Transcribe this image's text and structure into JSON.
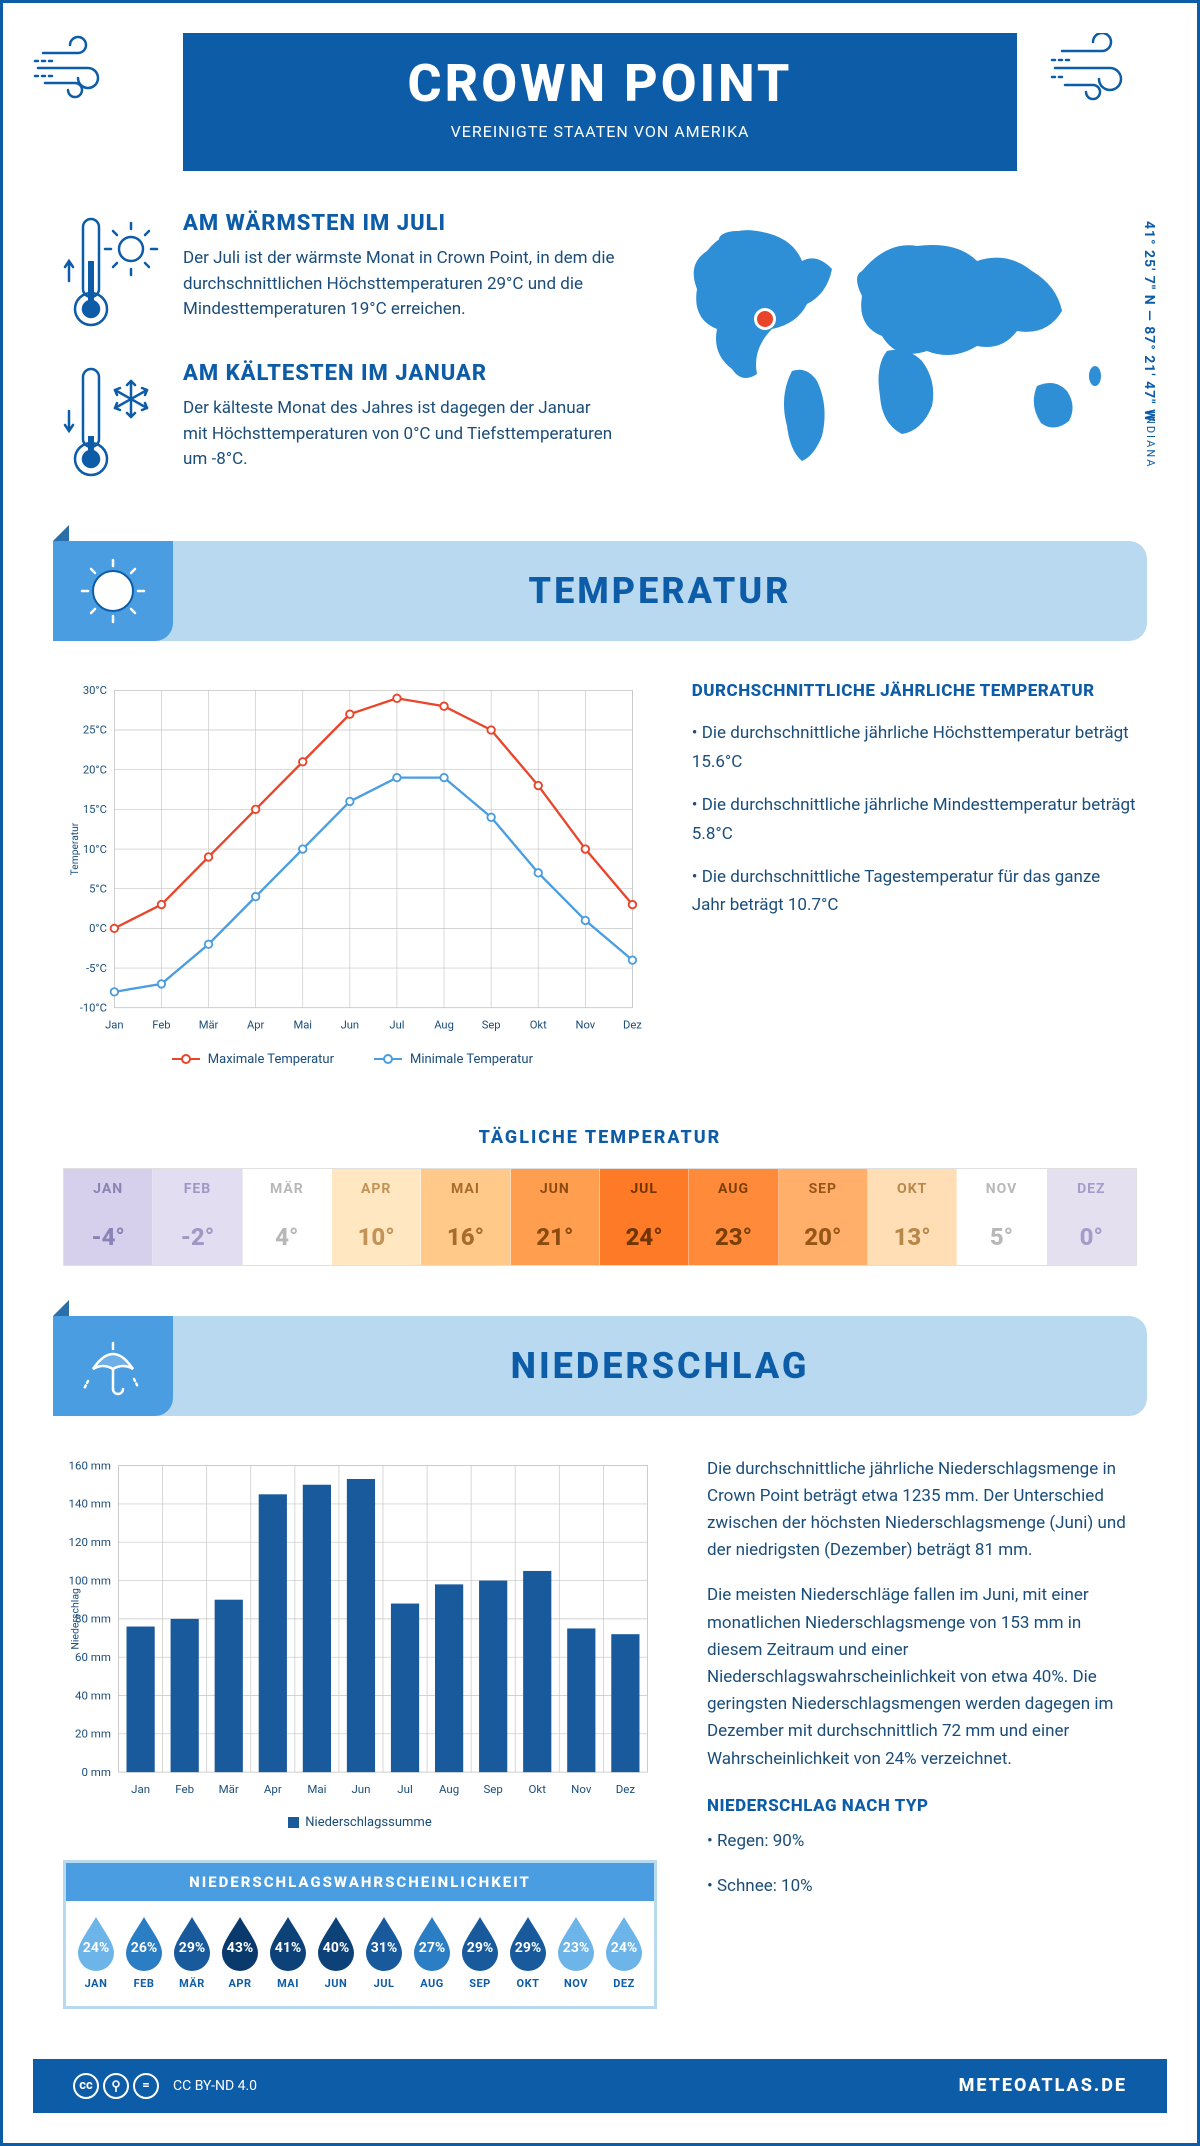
{
  "header": {
    "title": "CROWN POINT",
    "subtitle": "VEREINIGTE STAATEN VON AMERIKA"
  },
  "location": {
    "coords": "41° 25' 7\" N — 87° 21' 47\" W",
    "state": "INDIANA",
    "marker_color": "#e8452b"
  },
  "colors": {
    "primary": "#0d5ca8",
    "light_blue": "#b8d9f0",
    "mid_blue": "#4a9de0",
    "map_blue": "#2e8ed6",
    "text": "#1a4d7a",
    "orange": "#e8452b",
    "line_max": "#e8452b",
    "line_min": "#4a9de0",
    "bar_fill": "#185a9c"
  },
  "warmest": {
    "title": "AM WÄRMSTEN IM JULI",
    "text": "Der Juli ist der wärmste Monat in Crown Point, in dem die durchschnittlichen Höchsttemperaturen 29°C und die Mindesttemperaturen 19°C erreichen."
  },
  "coldest": {
    "title": "AM KÄLTESTEN IM JANUAR",
    "text": "Der kälteste Monat des Jahres ist dagegen der Januar mit Höchsttemperaturen von 0°C und Tiefsttemperaturen um -8°C."
  },
  "temp_banner": "TEMPERATUR",
  "temp_chart": {
    "months": [
      "Jan",
      "Feb",
      "Mär",
      "Apr",
      "Mai",
      "Jun",
      "Jul",
      "Aug",
      "Sep",
      "Okt",
      "Nov",
      "Dez"
    ],
    "max": [
      0,
      3,
      9,
      15,
      21,
      27,
      29,
      28,
      25,
      18,
      10,
      3
    ],
    "min": [
      -8,
      -7,
      -2,
      4,
      10,
      16,
      19,
      19,
      14,
      7,
      1,
      -4
    ],
    "ymin": -10,
    "ymax": 30,
    "ystep": 5,
    "ylabel": "Temperatur",
    "legend_max": "Maximale Temperatur",
    "legend_min": "Minimale Temperatur"
  },
  "temp_info": {
    "heading": "DURCHSCHNITTLICHE JÄHRLICHE TEMPERATUR",
    "line1": "• Die durchschnittliche jährliche Höchsttemperatur beträgt 15.6°C",
    "line2": "• Die durchschnittliche jährliche Mindesttemperatur beträgt 5.8°C",
    "line3": "• Die durchschnittliche Tagestemperatur für das ganze Jahr beträgt 10.7°C"
  },
  "daily_temp": {
    "heading": "TÄGLICHE TEMPERATUR",
    "months": [
      "JAN",
      "FEB",
      "MÄR",
      "APR",
      "MAI",
      "JUN",
      "JUL",
      "AUG",
      "SEP",
      "OKT",
      "NOV",
      "DEZ"
    ],
    "values": [
      "-4°",
      "-2°",
      "4°",
      "10°",
      "16°",
      "21°",
      "24°",
      "23°",
      "20°",
      "13°",
      "5°",
      "0°"
    ],
    "bg_colors": [
      "#d6d0ec",
      "#e2ddf0",
      "#ffffff",
      "#ffe7c2",
      "#ffc98a",
      "#ff9e4f",
      "#ff7a26",
      "#ff8a3a",
      "#ffaf6a",
      "#ffddb5",
      "#ffffff",
      "#e4e0f0"
    ],
    "text_colors": [
      "#8a83b5",
      "#9f98c4",
      "#b8b8b8",
      "#c29257",
      "#a86a2d",
      "#8a4a10",
      "#6e3500",
      "#7a3e06",
      "#965618",
      "#b8874b",
      "#b8b8b8",
      "#a49dc9"
    ]
  },
  "precip_banner": "NIEDERSCHLAG",
  "precip_chart": {
    "months": [
      "Jan",
      "Feb",
      "Mär",
      "Apr",
      "Mai",
      "Jun",
      "Jul",
      "Aug",
      "Sep",
      "Okt",
      "Nov",
      "Dez"
    ],
    "values": [
      76,
      80,
      90,
      145,
      150,
      153,
      88,
      98,
      100,
      105,
      75,
      72
    ],
    "ymin": 0,
    "ymax": 160,
    "ystep": 20,
    "ylabel": "Niederschlag",
    "legend": "Niederschlagssumme"
  },
  "precip_text": {
    "p1": "Die durchschnittliche jährliche Niederschlagsmenge in Crown Point beträgt etwa 1235 mm. Der Unterschied zwischen der höchsten Niederschlagsmenge (Juni) und der niedrigsten (Dezember) beträgt 81 mm.",
    "p2": "Die meisten Niederschläge fallen im Juni, mit einer monatlichen Niederschlagsmenge von 153 mm in diesem Zeitraum und einer Niederschlagswahrscheinlichkeit von etwa 40%. Die geringsten Niederschlagsmengen werden dagegen im Dezember mit durchschnittlich 72 mm und einer Wahrscheinlichkeit von 24% verzeichnet.",
    "by_type_heading": "NIEDERSCHLAG NACH TYP",
    "rain": "• Regen: 90%",
    "snow": "• Schnee: 10%"
  },
  "probability": {
    "heading": "NIEDERSCHLAGSWAHRSCHEINLICHKEIT",
    "months": [
      "JAN",
      "FEB",
      "MÄR",
      "APR",
      "MAI",
      "JUN",
      "JUL",
      "AUG",
      "SEP",
      "OKT",
      "NOV",
      "DEZ"
    ],
    "values": [
      "24%",
      "26%",
      "29%",
      "43%",
      "41%",
      "40%",
      "31%",
      "27%",
      "29%",
      "29%",
      "23%",
      "24%"
    ],
    "colors": [
      "#6db4e8",
      "#2b7dc4",
      "#185a9c",
      "#0a3a6b",
      "#0d4278",
      "#0d4278",
      "#185a9c",
      "#2b7dc4",
      "#185a9c",
      "#185a9c",
      "#6db4e8",
      "#6db4e8"
    ]
  },
  "footer": {
    "license": "CC BY-ND 4.0",
    "site": "METEOATLAS.DE"
  }
}
